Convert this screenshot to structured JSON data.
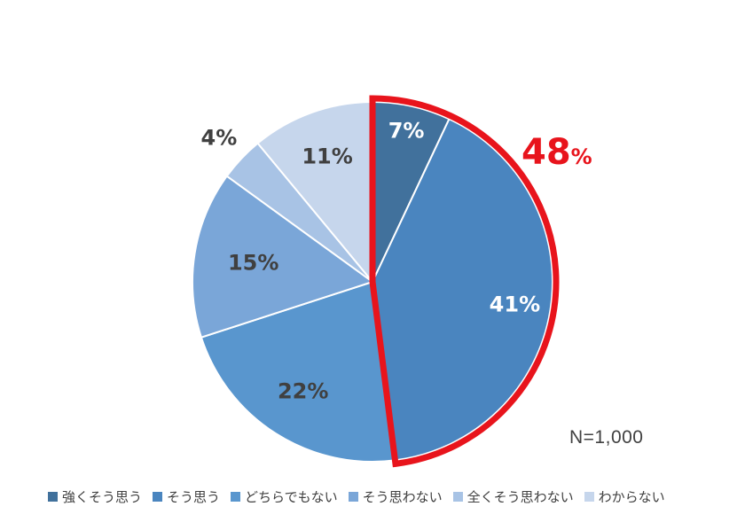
{
  "chart_data": {
    "type": "pie",
    "slices": [
      {
        "name": "強くそう思う",
        "value": 7,
        "label": "7%",
        "color": "#41719C",
        "label_color": "#FFFFFF"
      },
      {
        "name": "そう思う",
        "value": 41,
        "label": "41%",
        "color": "#4A85BF",
        "label_color": "#FFFFFF"
      },
      {
        "name": "どちらでもない",
        "value": 22,
        "label": "22%",
        "color": "#5996CE",
        "label_color": "#404040"
      },
      {
        "name": "そう思わない",
        "value": 15,
        "label": "15%",
        "color": "#7AA6D8",
        "label_color": "#404040"
      },
      {
        "name": "全くそう思わない",
        "value": 4,
        "label": "4%",
        "color": "#A8C3E5",
        "label_color": "#404040"
      },
      {
        "name": "わからない",
        "value": 11,
        "label": "11%",
        "color": "#C6D6EC",
        "label_color": "#404040"
      }
    ],
    "start_angle": "12 o'clock, clockwise",
    "highlight": {
      "slices": [
        "強くそう思う",
        "そう思う"
      ],
      "total_number": "48",
      "total_unit": "%",
      "outline_color": "#E8141C"
    },
    "legend": {
      "placement": "bottom"
    },
    "annotation": "N=1,000"
  }
}
